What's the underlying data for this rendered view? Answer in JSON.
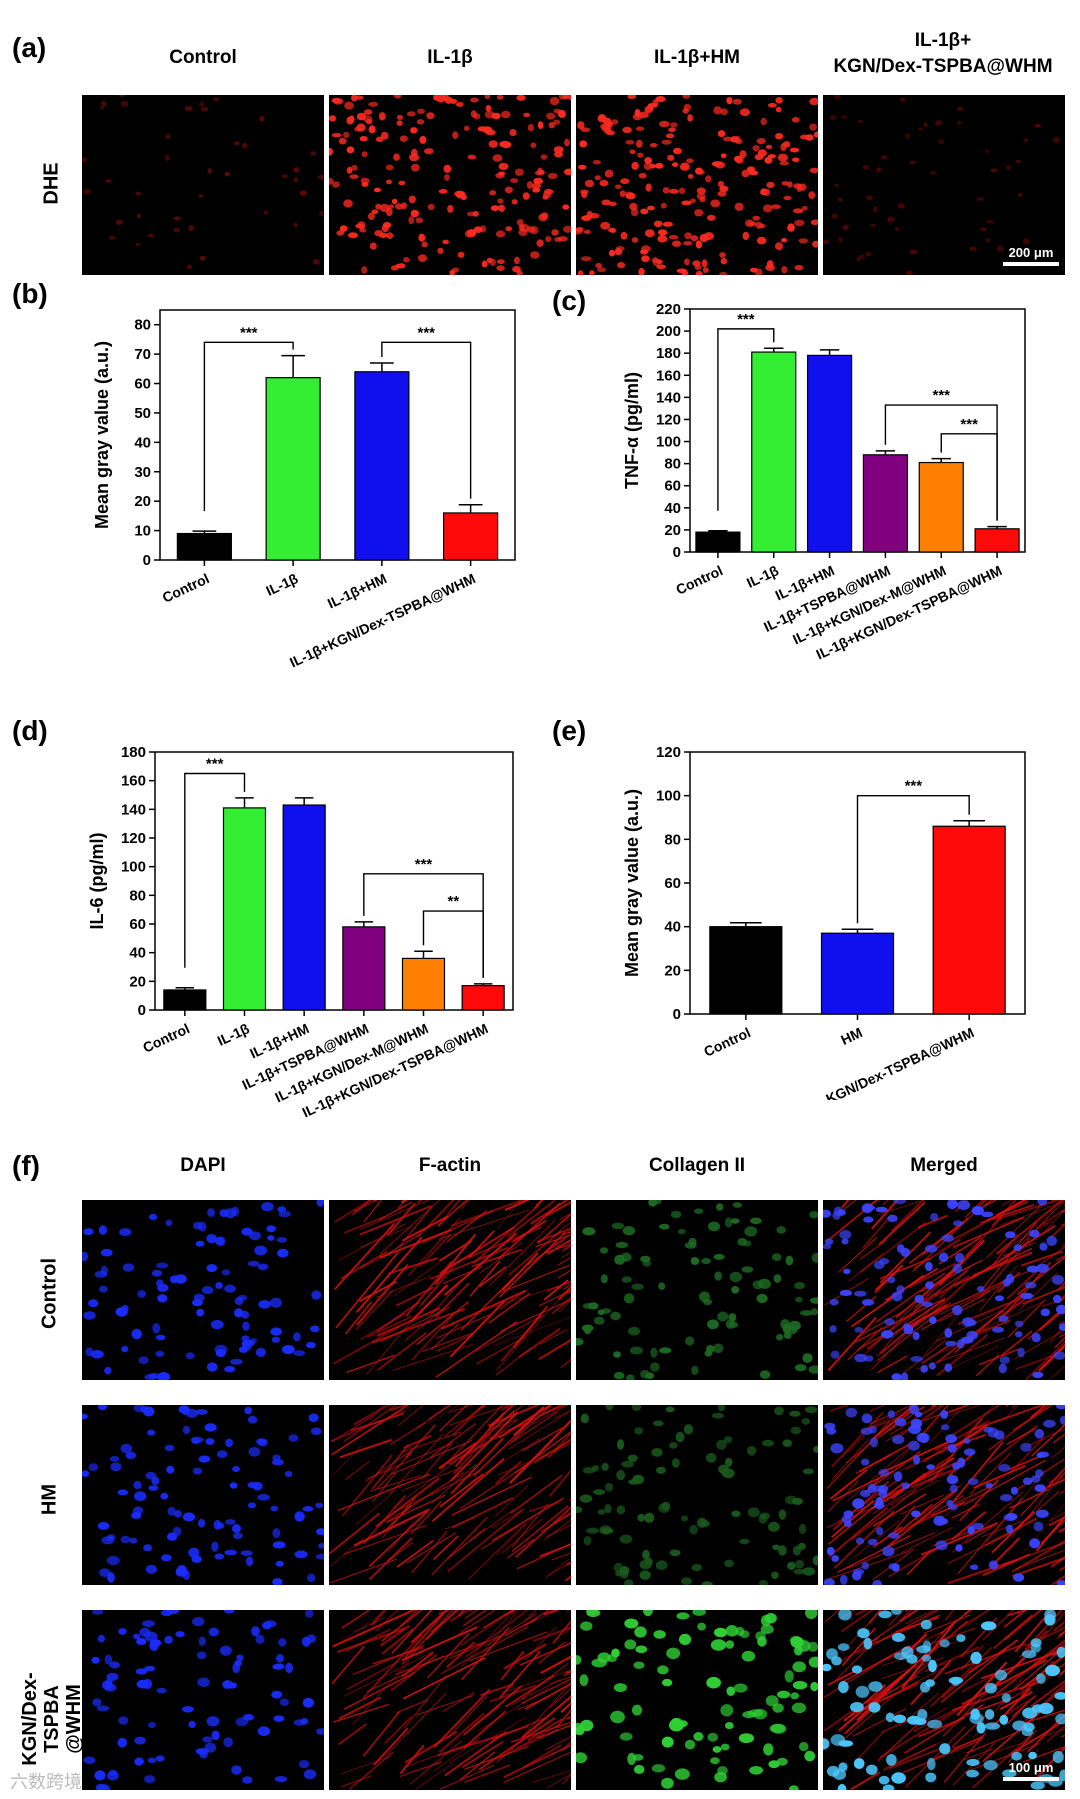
{
  "panel_a": {
    "label": "(a)",
    "row_label": "DHE",
    "columns": [
      "Control",
      "IL-1β",
      "IL-1β+HM",
      "IL-1β+\nKGN/Dex-TSPBA@WHM"
    ],
    "scale_bar": "200 μm",
    "colors": {
      "stain": "#e8201c",
      "background": "#000000"
    }
  },
  "panel_f": {
    "label": "(f)",
    "columns": [
      "DAPI",
      "F-actin",
      "Collagen II",
      "Merged"
    ],
    "rows": [
      "Control",
      "HM",
      "KGN/Dex-TSPBA\n@WHM"
    ],
    "scale_bar": "100 μm",
    "colors": {
      "dapi": "#1a2cff",
      "factin": "#e01010",
      "collagen": "#10b020",
      "merged_nuclei": "#4cc8ff"
    }
  },
  "watermark": "六数跨境",
  "chart_data": [
    {
      "panel": "(b)",
      "type": "bar",
      "title": "",
      "xlabel": "",
      "ylabel": "Mean gray value (a.u.)",
      "ylim": [
        0,
        85
      ],
      "yticks": [
        0,
        10,
        20,
        30,
        40,
        50,
        60,
        70,
        80
      ],
      "categories": [
        "Control",
        "IL-1β",
        "IL-1β+HM",
        "IL-1β+KGN/Dex-TSPBA@WHM"
      ],
      "values": [
        9,
        62,
        64,
        16
      ],
      "errors": [
        0.8,
        7.5,
        3,
        2.8
      ],
      "colors": [
        "#000000",
        "#33ee33",
        "#1010ee",
        "#ff0a0a"
      ],
      "significance": [
        {
          "from": 0,
          "to": 1,
          "label": "***",
          "level": 74
        },
        {
          "from": 2,
          "to": 3,
          "label": "***",
          "level": 74
        }
      ]
    },
    {
      "panel": "(c)",
      "type": "bar",
      "title": "",
      "xlabel": "",
      "ylabel": "TNF-α (pg/ml)",
      "ylim": [
        0,
        220
      ],
      "yticks": [
        0,
        20,
        40,
        60,
        80,
        100,
        120,
        140,
        160,
        180,
        200,
        220
      ],
      "categories": [
        "Control",
        "IL-1β",
        "IL-1β+HM",
        "IL-1β+TSPBA@WHM",
        "IL-1β+KGN/Dex-M@WHM",
        "IL-1β+KGN/Dex-TSPBA@WHM"
      ],
      "values": [
        18,
        181,
        178,
        88,
        81,
        21
      ],
      "errors": [
        1.2,
        3.5,
        5,
        3.5,
        3.5,
        2
      ],
      "colors": [
        "#000000",
        "#33ee33",
        "#1010ee",
        "#800080",
        "#ff8000",
        "#ff0a0a"
      ],
      "significance": [
        {
          "from": 0,
          "to": 1,
          "label": "***",
          "level": 202
        },
        {
          "from": 3,
          "to": 5,
          "label": "***",
          "level": 133
        },
        {
          "from": 4,
          "to": 5,
          "label": "***",
          "level": 107
        }
      ]
    },
    {
      "panel": "(d)",
      "type": "bar",
      "title": "",
      "xlabel": "",
      "ylabel": "IL-6 (pg/ml)",
      "ylim": [
        0,
        180
      ],
      "yticks": [
        0,
        20,
        40,
        60,
        80,
        100,
        120,
        140,
        160,
        180
      ],
      "categories": [
        "Control",
        "IL-1β",
        "IL-1β+HM",
        "IL-1β+TSPBA@WHM",
        "IL-1β+KGN/Dex-M@WHM",
        "IL-1β+KGN/Dex-TSPBA@WHM"
      ],
      "values": [
        14,
        141,
        143,
        58,
        36,
        17
      ],
      "errors": [
        1.5,
        7,
        5,
        3.5,
        5,
        1.2
      ],
      "colors": [
        "#000000",
        "#33ee33",
        "#1010ee",
        "#800080",
        "#ff8000",
        "#ff0a0a"
      ],
      "significance": [
        {
          "from": 0,
          "to": 1,
          "label": "***",
          "level": 165
        },
        {
          "from": 3,
          "to": 5,
          "label": "***",
          "level": 95
        },
        {
          "from": 4,
          "to": 5,
          "label": "**",
          "level": 69
        }
      ]
    },
    {
      "panel": "(e)",
      "type": "bar",
      "title": "",
      "xlabel": "",
      "ylabel": "Mean gray value (a.u.)",
      "ylim": [
        0,
        120
      ],
      "yticks": [
        0,
        20,
        40,
        60,
        80,
        100,
        120
      ],
      "categories": [
        "Control",
        "HM",
        "KGN/Dex-TSPBA@WHM"
      ],
      "values": [
        40,
        37,
        86
      ],
      "errors": [
        1.8,
        1.8,
        2.5
      ],
      "colors": [
        "#000000",
        "#1010ee",
        "#ff0a0a"
      ],
      "significance": [
        {
          "from": 1,
          "to": 2,
          "label": "***",
          "level": 100
        }
      ]
    }
  ]
}
